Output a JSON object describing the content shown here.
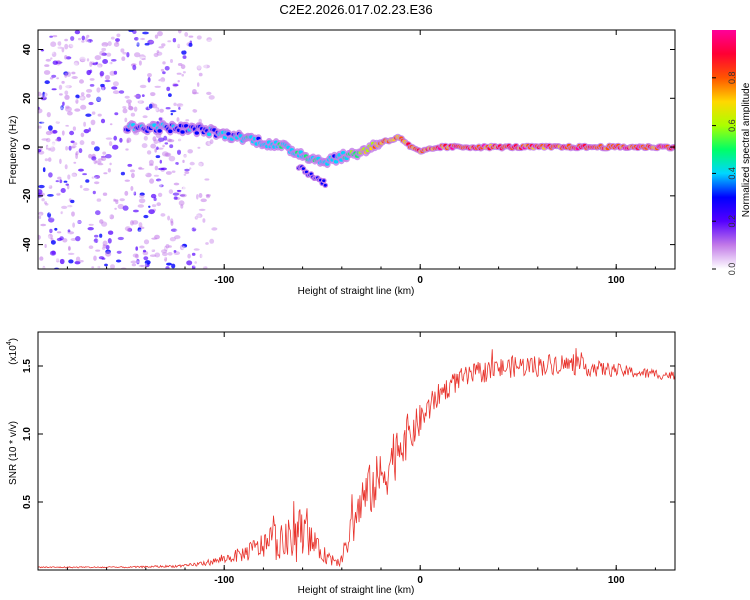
{
  "title": "C2E2.2026.017.02.23.E36",
  "colors": {
    "snr_line": "#e8332c",
    "colorbar": [
      "#ffffff",
      "#c27ae8",
      "#5500ff",
      "#0000ff",
      "#00d6ff",
      "#00ff66",
      "#aaff00",
      "#ffd800",
      "#ff5500",
      "#ff0033",
      "#ff0099"
    ]
  },
  "chart_data": [
    {
      "type": "heatmap",
      "title": "",
      "xlabel": "Height of straight line (km)",
      "ylabel": "Frequency (Hz)",
      "xlim": [
        -195,
        130
      ],
      "ylim": [
        -50,
        48
      ],
      "x_ticks": [
        -100,
        0,
        100
      ],
      "x_tick_labels": [
        "-100",
        "0",
        "100"
      ],
      "y_ticks": [
        -40,
        -20,
        0,
        20,
        40
      ],
      "y_tick_labels": [
        "-40",
        "-20",
        "0",
        "20",
        "40"
      ],
      "colorbar": {
        "label": "Normalized spectral amplitude",
        "range": [
          0,
          1
        ],
        "ticks": [
          0.0,
          0.2,
          0.4,
          0.6,
          0.8
        ],
        "tick_labels": [
          "0.0",
          "0.2",
          "0.4",
          "0.6",
          "0.8"
        ]
      },
      "noise_region_x": [
        -195,
        -115
      ],
      "ridge": {
        "x": [
          -150,
          -130,
          -110,
          -100,
          -90,
          -80,
          -70,
          -60,
          -50,
          -40,
          -30,
          -20,
          -10,
          -5,
          0,
          10,
          30,
          60,
          90,
          130
        ],
        "freq": [
          8,
          8,
          7,
          5,
          4,
          2,
          0,
          -3,
          -6,
          -4,
          -2,
          2,
          4,
          0,
          -2,
          0,
          0,
          0,
          0,
          0
        ],
        "amplitude": [
          0.35,
          0.35,
          0.3,
          0.35,
          0.4,
          0.4,
          0.45,
          0.45,
          0.4,
          0.4,
          0.6,
          0.75,
          0.8,
          0.75,
          0.8,
          0.85,
          0.85,
          0.85,
          0.85,
          0.85
        ]
      },
      "branch": {
        "x": [
          -62,
          -57,
          -52,
          -48
        ],
        "freq": [
          -8,
          -11,
          -13,
          -15
        ],
        "amplitude": [
          0.35,
          0.35,
          0.3,
          0.3
        ]
      }
    },
    {
      "type": "line",
      "title": "",
      "xlabel": "Height of straight line (km)",
      "ylabel": "SNR (10 * v/v)",
      "y_multiplier": "(x10",
      "y_multiplier_exp": "4",
      "xlim": [
        -195,
        130
      ],
      "ylim": [
        0,
        1.75
      ],
      "x_ticks": [
        -100,
        0,
        100
      ],
      "x_tick_labels": [
        "-100",
        "0",
        "100"
      ],
      "y_ticks": [
        0.5,
        1.0,
        1.5
      ],
      "y_tick_labels": [
        "0.5",
        "1.0",
        "1.5"
      ],
      "series": [
        {
          "name": "SNR",
          "x": [
            -195,
            -150,
            -120,
            -110,
            -100,
            -90,
            -80,
            -75,
            -70,
            -65,
            -60,
            -55,
            -50,
            -45,
            -40,
            -35,
            -30,
            -25,
            -20,
            -15,
            -10,
            -5,
            0,
            5,
            10,
            20,
            30,
            40,
            50,
            60,
            70,
            80,
            90,
            100,
            110,
            120,
            130
          ],
          "values": [
            0.02,
            0.02,
            0.03,
            0.05,
            0.08,
            0.12,
            0.18,
            0.22,
            0.2,
            0.22,
            0.3,
            0.2,
            0.12,
            0.08,
            0.08,
            0.3,
            0.5,
            0.6,
            0.68,
            0.8,
            0.95,
            1.0,
            1.1,
            1.2,
            1.3,
            1.4,
            1.45,
            1.48,
            1.5,
            1.5,
            1.52,
            1.5,
            1.48,
            1.47,
            1.45,
            1.44,
            1.43
          ],
          "noise_amplitude": [
            0.005,
            0.005,
            0.01,
            0.02,
            0.03,
            0.06,
            0.1,
            0.15,
            0.12,
            0.2,
            0.18,
            0.1,
            0.06,
            0.06,
            0.05,
            0.15,
            0.18,
            0.2,
            0.2,
            0.22,
            0.2,
            0.15,
            0.12,
            0.1,
            0.08,
            0.08,
            0.08,
            0.08,
            0.08,
            0.08,
            0.08,
            0.07,
            0.06,
            0.05,
            0.04,
            0.04,
            0.03
          ]
        }
      ]
    }
  ]
}
